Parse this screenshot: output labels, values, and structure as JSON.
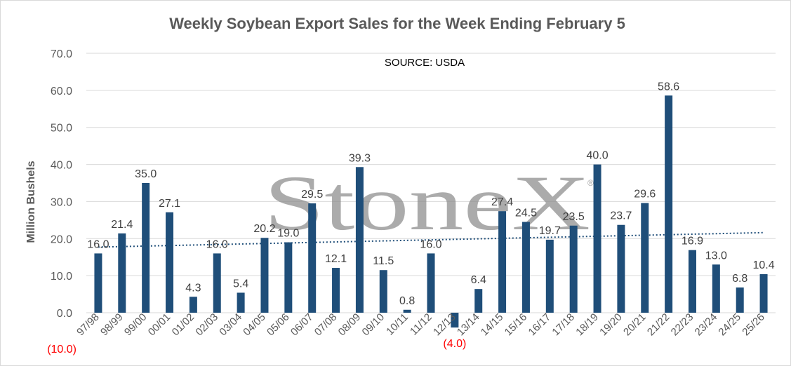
{
  "chart_data": {
    "type": "bar",
    "title": "Weekly Soybean Export Sales for the Week Ending February 5",
    "annotation": "SOURCE: USDA",
    "watermark": "StoneX",
    "watermark_mark": "®",
    "ylabel": "Million Bushels",
    "xlabel": "",
    "ylim": [
      -10,
      70
    ],
    "yticks": [
      0,
      10,
      20,
      30,
      40,
      50,
      60,
      70
    ],
    "ytick_labels": [
      "0.0",
      "10.0",
      "20.0",
      "30.0",
      "40.0",
      "50.0",
      "60.0",
      "70.0"
    ],
    "ytick_negative_label": "(10.0)",
    "grid": true,
    "legend": "none",
    "trendline": "linear",
    "colors": {
      "bar": "#1f4e79",
      "trend": "#1f4e79",
      "grid": "#d9d9d9",
      "negative_label": "#ff0000"
    },
    "categories": [
      "97/98",
      "98/99",
      "99/00",
      "00/01",
      "01/02",
      "02/03",
      "03/04",
      "04/05",
      "05/06",
      "06/07",
      "07/08",
      "08/09",
      "09/10",
      "10/11",
      "11/12",
      "12/13",
      "13/14",
      "14/15",
      "15/16",
      "16/17",
      "17/18",
      "18/19",
      "19/20",
      "20/21",
      "21/22",
      "22/23",
      "23/24",
      "24/25",
      "25/26"
    ],
    "values": [
      16.0,
      21.4,
      35.0,
      27.1,
      4.3,
      16.0,
      5.4,
      20.2,
      19.0,
      29.5,
      12.1,
      39.3,
      11.5,
      0.8,
      16.0,
      -4.0,
      6.4,
      27.4,
      24.5,
      19.7,
      23.5,
      40.0,
      23.7,
      29.6,
      58.6,
      16.9,
      13.0,
      6.8,
      10.4
    ],
    "data_labels": [
      "16.0",
      "21.4",
      "35.0",
      "27.1",
      "4.3",
      "16.0",
      "5.4",
      "20.2",
      "19.0",
      "29.5",
      "12.1",
      "39.3",
      "11.5",
      "0.8",
      "16.0",
      "(4.0)",
      "6.4",
      "27.4",
      "24.5",
      "19.7",
      "23.5",
      "40.0",
      "23.7",
      "29.6",
      "58.6",
      "16.9",
      "13.0",
      "6.8",
      "10.4"
    ]
  }
}
